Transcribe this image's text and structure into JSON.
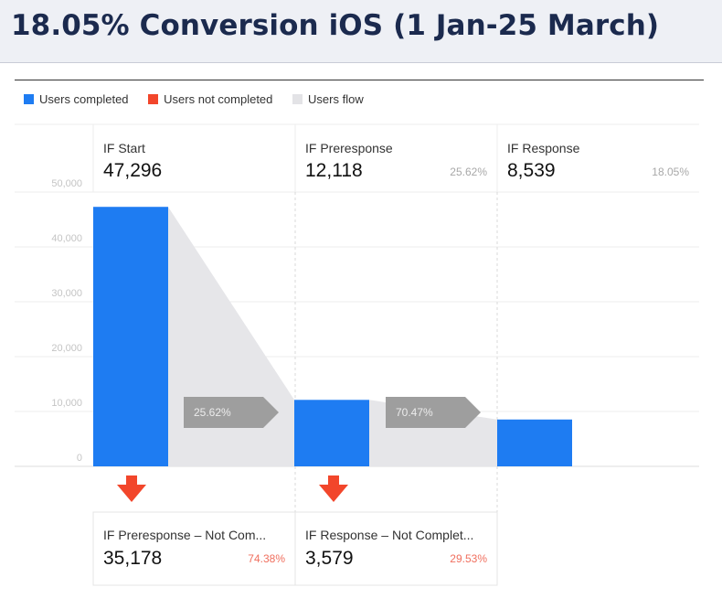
{
  "header": {
    "title": "18.05% Conversion iOS (1 Jan-25 March)"
  },
  "colors": {
    "completed": "#1e7cf2",
    "not_completed": "#f2462b",
    "flow": "#e6e6e9",
    "header_bg": "#eef0f5",
    "title": "#1b2a4e"
  },
  "chart_data": {
    "type": "bar",
    "title": "",
    "legend": {
      "placement": "top-left",
      "entries": [
        "Users completed",
        "Users not completed",
        "Users flow"
      ]
    },
    "ylim": [
      0,
      50000
    ],
    "yticks": [
      {
        "value": 0,
        "label": "0"
      },
      {
        "value": 10000,
        "label": "10,000"
      },
      {
        "value": 20000,
        "label": "20,000"
      },
      {
        "value": 30000,
        "label": "30,000"
      },
      {
        "value": 40000,
        "label": "40,000"
      },
      {
        "value": 50000,
        "label": "50,000"
      }
    ],
    "grid": true,
    "stages": [
      {
        "name": "IF Start",
        "value": 47296,
        "value_label": "47,296",
        "pct_label": ""
      },
      {
        "name": "IF Preresponse",
        "value": 12118,
        "value_label": "12,118",
        "pct_label": "25.62%"
      },
      {
        "name": "IF Response",
        "value": 8539,
        "value_label": "8,539",
        "pct_label": "18.05%"
      }
    ],
    "flows": [
      {
        "label": "25.62%"
      },
      {
        "label": "70.47%"
      }
    ],
    "dropoffs": [
      {
        "name": "IF Preresponse – Not Com...",
        "value": 35178,
        "value_label": "35,178",
        "pct_label": "74.38%"
      },
      {
        "name": "IF Response – Not Complet...",
        "value": 3579,
        "value_label": "3,579",
        "pct_label": "29.53%"
      }
    ]
  }
}
